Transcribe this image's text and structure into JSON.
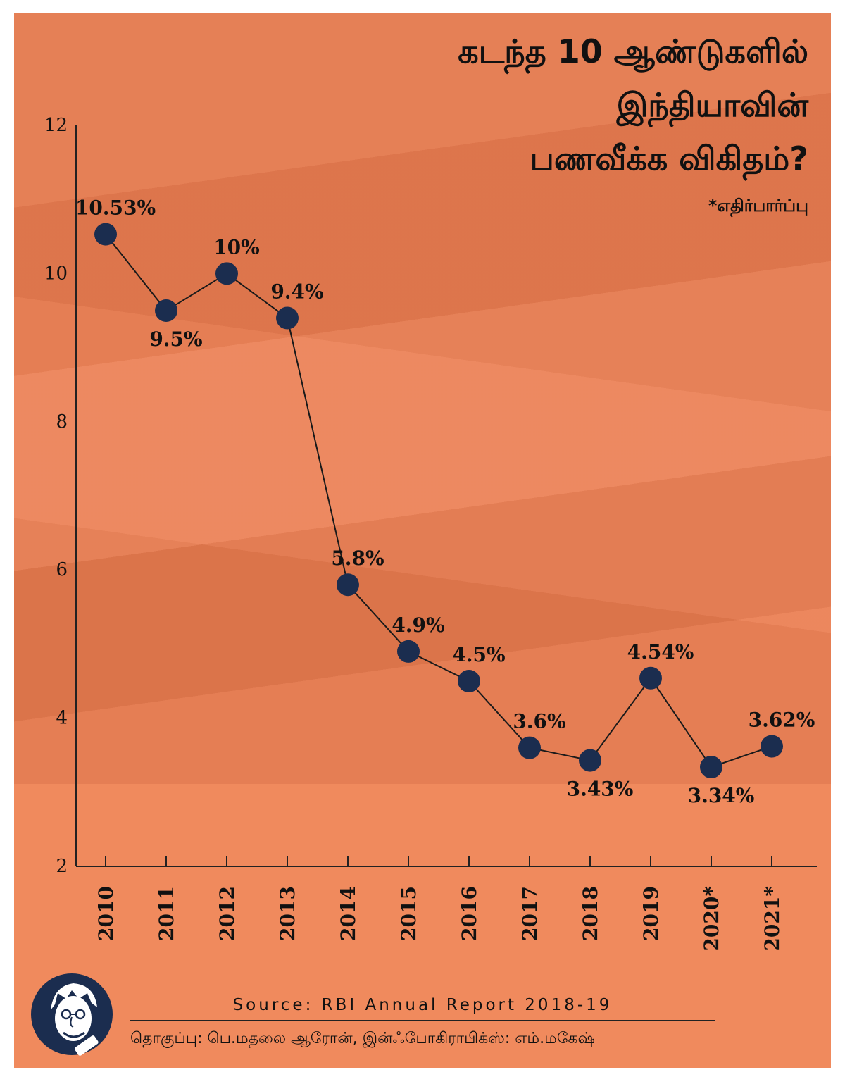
{
  "title": {
    "line1": "கடந்த 10 ஆண்டுகளில்",
    "line2": "இந்தியாவின்",
    "line3": "பணவீக்க விகிதம்?",
    "note": "*எதிர்பார்ப்பு"
  },
  "footer": {
    "source": "Source: RBI Annual Report 2018-19",
    "credits": "தொகுப்பு: பெ.மதலை ஆரோன், இன்ஃபோகிராபிக்ஸ்: எம்.மகேஷ்"
  },
  "colors": {
    "background": "#f08a5d",
    "marker": "#1b2d4f",
    "line": "#1a1a1a"
  },
  "chart_data": {
    "type": "line",
    "title": "கடந்த 10 ஆண்டுகளில் இந்தியாவின் பணவீக்க விகிதம்?",
    "xlabel": "",
    "ylabel": "",
    "ylim": [
      2,
      12
    ],
    "yticks": [
      2,
      4,
      6,
      8,
      10,
      12
    ],
    "grid": false,
    "categories": [
      "2010",
      "2011",
      "2012",
      "2013",
      "2014",
      "2015",
      "2016",
      "2017",
      "2018",
      "2019",
      "2020*",
      "2021*"
    ],
    "values": [
      10.53,
      9.5,
      10,
      9.4,
      5.8,
      4.9,
      4.5,
      3.6,
      3.43,
      4.54,
      3.34,
      3.62
    ],
    "labels": [
      "10.53%",
      "9.5%",
      "10%",
      "9.4%",
      "5.8%",
      "4.9%",
      "4.5%",
      "3.6%",
      "3.43%",
      "4.54%",
      "3.34%",
      "3.62%"
    ],
    "label_positions": [
      "above",
      "below",
      "above",
      "above",
      "above",
      "above",
      "above",
      "above",
      "below",
      "above",
      "below",
      "above"
    ]
  }
}
